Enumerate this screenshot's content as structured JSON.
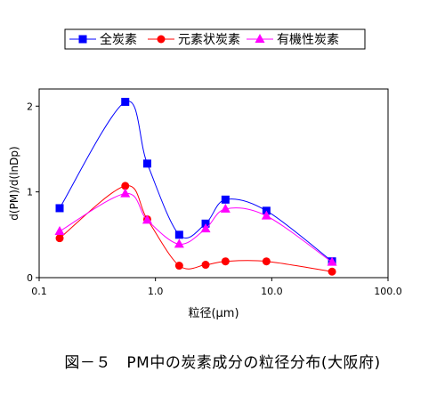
{
  "chart_data": {
    "type": "line",
    "x_scale": "log",
    "xlabel": "粒径(μm)",
    "ylabel": "d(PM)/d(lnDp)",
    "xlim": [
      0.1,
      100.0
    ],
    "ylim": [
      0,
      2.2
    ],
    "x_ticks": [
      {
        "value": 0.1,
        "label": "0.1"
      },
      {
        "value": 1.0,
        "label": "1.0"
      },
      {
        "value": 10.0,
        "label": "10.0"
      },
      {
        "value": 100.0,
        "label": "100.0"
      }
    ],
    "y_ticks": [
      {
        "value": 0,
        "label": "0"
      },
      {
        "value": 1,
        "label": "1"
      },
      {
        "value": 2,
        "label": "2"
      }
    ],
    "grid": false,
    "legend_position": "top",
    "series": [
      {
        "name": "全炭素",
        "color": "#0000ff",
        "marker": "square",
        "x": [
          0.15,
          0.55,
          0.85,
          1.6,
          2.7,
          4.0,
          9.0,
          33.0
        ],
        "y": [
          0.81,
          2.05,
          1.33,
          0.5,
          0.63,
          0.91,
          0.78,
          0.19
        ]
      },
      {
        "name": "元素状炭素",
        "color": "#ff0000",
        "marker": "circle",
        "x": [
          0.15,
          0.55,
          0.85,
          1.6,
          2.7,
          4.0,
          9.0,
          33.0
        ],
        "y": [
          0.46,
          1.07,
          0.68,
          0.14,
          0.15,
          0.19,
          0.19,
          0.07
        ]
      },
      {
        "name": "有機性炭素",
        "color": "#ff00ff",
        "marker": "triangle",
        "x": [
          0.15,
          0.55,
          0.85,
          1.6,
          2.7,
          4.0,
          9.0,
          33.0
        ],
        "y": [
          0.54,
          0.98,
          0.67,
          0.39,
          0.57,
          0.8,
          0.72,
          0.18
        ]
      }
    ]
  },
  "caption": "図－５　PM中の炭素成分の粒径分布(大阪府)"
}
